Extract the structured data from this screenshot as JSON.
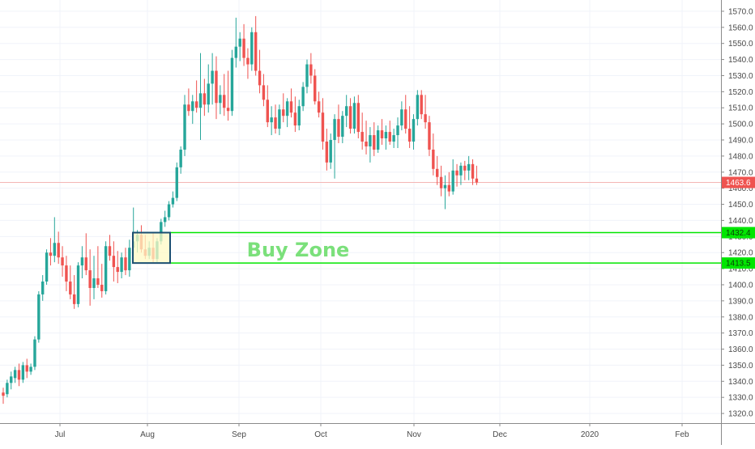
{
  "chart_data": {
    "type": "candlestick",
    "title": "",
    "xlabel": "",
    "ylabel": "",
    "ylim": [
      1314,
      1577
    ],
    "grid": true,
    "x_tick_labels": [
      "Jul",
      "Aug",
      "Sep",
      "Oct",
      "Nov",
      "Dec",
      "2020",
      "Feb"
    ],
    "y_tick_labels": [
      "1320.0",
      "1330.0",
      "1340.0",
      "1350.0",
      "1360.0",
      "1370.0",
      "1380.0",
      "1390.0",
      "1400.0",
      "1410.0",
      "1420.0",
      "1430.0",
      "1440.0",
      "1450.0",
      "1460.0",
      "1470.0",
      "1480.0",
      "1490.0",
      "1500.0",
      "1510.0",
      "1520.0",
      "1530.0",
      "1540.0",
      "1550.0",
      "1560.0",
      "1570.0"
    ],
    "last_price": {
      "value": 1463.6,
      "label": "1463.6",
      "color": "#ef5350"
    },
    "up_color": "#26a69a",
    "down_color": "#ef5350",
    "buy_zone": {
      "label": "Buy Zone",
      "upper": 1432.4,
      "lower": 1413.5,
      "upper_label": "1432.4",
      "lower_label": "1413.5",
      "line_color": "#00e600",
      "label_color": "#7be07b"
    },
    "highlight_box": {
      "high": 1432.4,
      "low": 1413.5,
      "fill": "#fff9c4",
      "border": "#1b4f72"
    },
    "series": [
      {
        "name": "",
        "ohlc": [
          [
            1333,
            1336,
            1326,
            1331
          ],
          [
            1332,
            1341,
            1330,
            1339
          ],
          [
            1339,
            1346,
            1335,
            1343
          ],
          [
            1342,
            1349,
            1339,
            1347
          ],
          [
            1347,
            1351,
            1337,
            1341
          ],
          [
            1341,
            1352,
            1339,
            1350
          ],
          [
            1350,
            1354,
            1342,
            1346
          ],
          [
            1346,
            1351,
            1344,
            1349
          ],
          [
            1349,
            1368,
            1347,
            1366
          ],
          [
            1366,
            1396,
            1364,
            1394
          ],
          [
            1394,
            1406,
            1390,
            1402
          ],
          [
            1402,
            1422,
            1400,
            1420
          ],
          [
            1420,
            1429,
            1412,
            1418
          ],
          [
            1418,
            1442,
            1414,
            1426
          ],
          [
            1426,
            1433,
            1413,
            1417
          ],
          [
            1417,
            1424,
            1405,
            1412
          ],
          [
            1412,
            1418,
            1396,
            1402
          ],
          [
            1402,
            1412,
            1391,
            1394
          ],
          [
            1394,
            1406,
            1385,
            1388
          ],
          [
            1388,
            1414,
            1386,
            1412
          ],
          [
            1412,
            1424,
            1404,
            1417
          ],
          [
            1417,
            1432,
            1406,
            1409
          ],
          [
            1409,
            1422,
            1387,
            1398
          ],
          [
            1398,
            1418,
            1391,
            1404
          ],
          [
            1404,
            1424,
            1398,
            1400
          ],
          [
            1400,
            1413,
            1392,
            1396
          ],
          [
            1396,
            1427,
            1394,
            1424
          ],
          [
            1424,
            1431,
            1415,
            1418
          ],
          [
            1418,
            1427,
            1402,
            1411
          ],
          [
            1411,
            1421,
            1401,
            1408
          ],
          [
            1408,
            1420,
            1404,
            1417
          ],
          [
            1417,
            1423,
            1406,
            1409
          ],
          [
            1409,
            1428,
            1405,
            1423
          ],
          [
            1423,
            1448,
            1418,
            1427
          ],
          [
            1427,
            1434,
            1420,
            1431
          ],
          [
            1431,
            1437,
            1420,
            1422
          ],
          [
            1422,
            1431,
            1416,
            1418
          ],
          [
            1418,
            1427,
            1416,
            1423
          ],
          [
            1423,
            1432,
            1414,
            1416
          ],
          [
            1416,
            1429,
            1414,
            1427
          ],
          [
            1427,
            1441,
            1425,
            1439
          ],
          [
            1439,
            1446,
            1436,
            1442
          ],
          [
            1442,
            1452,
            1440,
            1450
          ],
          [
            1450,
            1458,
            1448,
            1454
          ],
          [
            1454,
            1476,
            1452,
            1473
          ],
          [
            1473,
            1486,
            1469,
            1484
          ],
          [
            1484,
            1518,
            1480,
            1512
          ],
          [
            1512,
            1522,
            1505,
            1508
          ],
          [
            1508,
            1518,
            1500,
            1514
          ],
          [
            1514,
            1527,
            1507,
            1510
          ],
          [
            1510,
            1544,
            1490,
            1519
          ],
          [
            1519,
            1528,
            1505,
            1512
          ],
          [
            1512,
            1537,
            1507,
            1525
          ],
          [
            1525,
            1544,
            1512,
            1533
          ],
          [
            1533,
            1542,
            1503,
            1513
          ],
          [
            1513,
            1524,
            1506,
            1518
          ],
          [
            1518,
            1531,
            1505,
            1510
          ],
          [
            1510,
            1533,
            1502,
            1508
          ],
          [
            1508,
            1546,
            1505,
            1541
          ],
          [
            1541,
            1566,
            1535,
            1548
          ],
          [
            1548,
            1557,
            1539,
            1553
          ],
          [
            1553,
            1562,
            1536,
            1541
          ],
          [
            1541,
            1547,
            1528,
            1537
          ],
          [
            1537,
            1560,
            1533,
            1557
          ],
          [
            1557,
            1567,
            1530,
            1533
          ],
          [
            1533,
            1546,
            1519,
            1524
          ],
          [
            1524,
            1531,
            1511,
            1515
          ],
          [
            1515,
            1524,
            1498,
            1501
          ],
          [
            1501,
            1511,
            1493,
            1504
          ],
          [
            1504,
            1512,
            1494,
            1497
          ],
          [
            1497,
            1512,
            1493,
            1509
          ],
          [
            1509,
            1519,
            1501,
            1505
          ],
          [
            1505,
            1516,
            1498,
            1514
          ],
          [
            1514,
            1522,
            1504,
            1507
          ],
          [
            1507,
            1517,
            1495,
            1499
          ],
          [
            1499,
            1515,
            1496,
            1511
          ],
          [
            1511,
            1526,
            1508,
            1523
          ],
          [
            1523,
            1540,
            1519,
            1537
          ],
          [
            1537,
            1544,
            1525,
            1530
          ],
          [
            1530,
            1534,
            1512,
            1514
          ],
          [
            1514,
            1520,
            1504,
            1507
          ],
          [
            1507,
            1516,
            1484,
            1489
          ],
          [
            1489,
            1497,
            1471,
            1476
          ],
          [
            1476,
            1494,
            1472,
            1490
          ],
          [
            1490,
            1506,
            1466,
            1503
          ],
          [
            1503,
            1512,
            1488,
            1492
          ],
          [
            1492,
            1508,
            1488,
            1505
          ],
          [
            1505,
            1518,
            1498,
            1511
          ],
          [
            1511,
            1516,
            1494,
            1497
          ],
          [
            1497,
            1517,
            1494,
            1513
          ],
          [
            1513,
            1518,
            1491,
            1495
          ],
          [
            1495,
            1507,
            1484,
            1489
          ],
          [
            1489,
            1502,
            1481,
            1486
          ],
          [
            1486,
            1498,
            1476,
            1493
          ],
          [
            1493,
            1501,
            1480,
            1484
          ],
          [
            1484,
            1499,
            1482,
            1496
          ],
          [
            1496,
            1503,
            1487,
            1491
          ],
          [
            1491,
            1499,
            1484,
            1495
          ],
          [
            1495,
            1502,
            1487,
            1489
          ],
          [
            1489,
            1497,
            1485,
            1493
          ],
          [
            1493,
            1504,
            1485,
            1499
          ],
          [
            1499,
            1514,
            1496,
            1509
          ],
          [
            1509,
            1518,
            1494,
            1497
          ],
          [
            1497,
            1511,
            1485,
            1489
          ],
          [
            1489,
            1506,
            1484,
            1503
          ],
          [
            1503,
            1521,
            1499,
            1518
          ],
          [
            1518,
            1521,
            1503,
            1506
          ],
          [
            1506,
            1518,
            1497,
            1501
          ],
          [
            1501,
            1505,
            1480,
            1484
          ],
          [
            1484,
            1494,
            1468,
            1472
          ],
          [
            1472,
            1480,
            1462,
            1467
          ],
          [
            1467,
            1474,
            1455,
            1460
          ],
          [
            1460,
            1468,
            1447,
            1462
          ],
          [
            1462,
            1470,
            1455,
            1458
          ],
          [
            1458,
            1478,
            1456,
            1471
          ],
          [
            1471,
            1475,
            1461,
            1468
          ],
          [
            1468,
            1476,
            1462,
            1474
          ],
          [
            1474,
            1477,
            1465,
            1471
          ],
          [
            1471,
            1480,
            1465,
            1475
          ],
          [
            1475,
            1478,
            1462,
            1466
          ],
          [
            1466,
            1474,
            1462,
            1463.6
          ]
        ]
      }
    ]
  }
}
